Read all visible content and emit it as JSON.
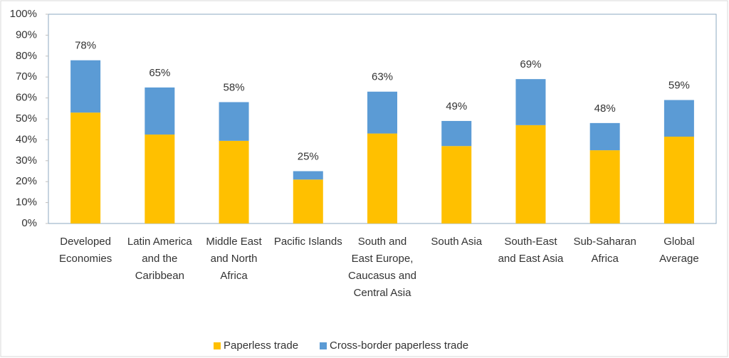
{
  "chart_data": {
    "type": "stacked_bar",
    "categories": [
      "Developed Economies",
      "Latin America and the Caribbean",
      "Middle East and North Africa",
      "Pacific Islands",
      "South and East Europe, Caucasus and Central Asia",
      "South Asia",
      "South-East and East Asia",
      "Sub-Saharan Africa",
      "Global Average"
    ],
    "series": [
      {
        "name": "Paperless trade",
        "color": "#ffc000",
        "values": [
          53,
          42.5,
          39.5,
          21,
          43,
          37,
          47,
          35,
          41.5
        ]
      },
      {
        "name": "Cross-border paperless trade",
        "color": "#5b9bd5",
        "values": [
          25,
          22.5,
          18.5,
          4,
          20,
          12,
          22,
          13,
          17.5
        ]
      }
    ],
    "totals": [
      78,
      65,
      58,
      25,
      63,
      49,
      69,
      48,
      59
    ],
    "total_labels": [
      "78%",
      "65%",
      "58%",
      "25%",
      "63%",
      "49%",
      "69%",
      "48%",
      "59%"
    ],
    "ylim": [
      0,
      100
    ],
    "yticks": [
      {
        "value": 0,
        "label": "0%"
      },
      {
        "value": 10,
        "label": "10%"
      },
      {
        "value": 20,
        "label": "20%"
      },
      {
        "value": 30,
        "label": "30%"
      },
      {
        "value": 40,
        "label": "40%"
      },
      {
        "value": 50,
        "label": "50%"
      },
      {
        "value": 60,
        "label": "60%"
      },
      {
        "value": 70,
        "label": "70%"
      },
      {
        "value": 80,
        "label": "80%"
      },
      {
        "value": 90,
        "label": "90%"
      },
      {
        "value": 100,
        "label": "100%"
      }
    ],
    "grid": false,
    "legend": "bottom"
  }
}
